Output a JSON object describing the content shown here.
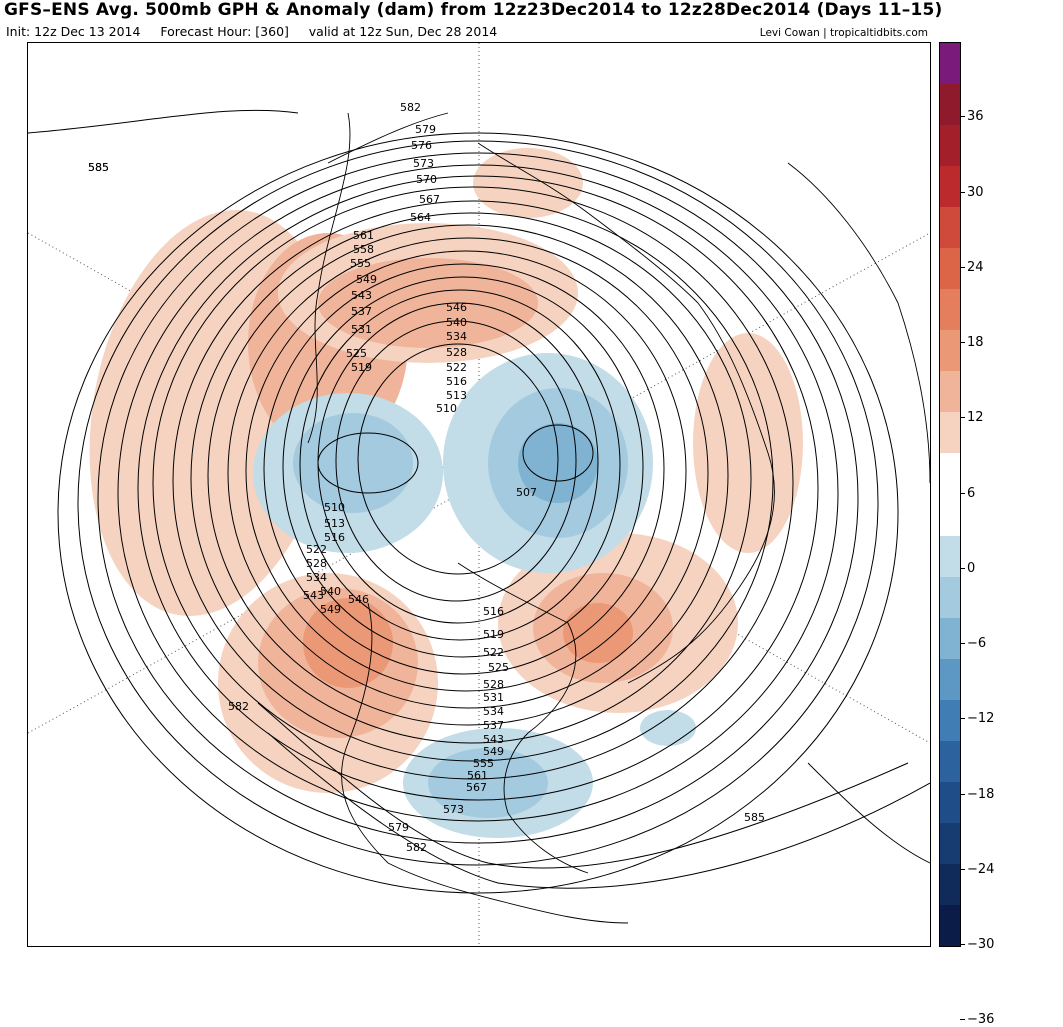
{
  "header": {
    "title": "GFS–ENS Avg. 500mb GPH & Anomaly (dam) from 12z23Dec2014 to 12z28Dec2014 (Days 11–15)",
    "init": "Init: 12z Dec 13 2014",
    "forecast_hour": "Forecast Hour: [360]",
    "valid": "valid at 12z Sun, Dec 28 2014",
    "credit": "Levi Cowan | tropicaltidbits.com"
  },
  "colorbar": {
    "tick_labels": [
      "36",
      "30",
      "24",
      "18",
      "12",
      "6",
      "0",
      "−6",
      "−12",
      "−18",
      "−24",
      "−30",
      "−36"
    ],
    "colors": [
      "#7a1a7a",
      "#8e1a2c",
      "#a3202a",
      "#bd2a2e",
      "#cf4a3a",
      "#dc6447",
      "#e47e5c",
      "#eb9877",
      "#f0b49a",
      "#f6d3c0",
      "#ffffff",
      "#ffffff",
      "#c2dce8",
      "#a3cadf",
      "#80b3d2",
      "#5d98c4",
      "#3f7db4",
      "#2c639e",
      "#1f4d88",
      "#173c72",
      "#102a5a",
      "#0b1c48"
    ]
  },
  "map": {
    "contour_labels": [
      "585",
      "582",
      "579",
      "576",
      "573",
      "570",
      "567",
      "564",
      "561",
      "558",
      "555",
      "549",
      "543",
      "537",
      "531",
      "525",
      "519",
      "546",
      "540",
      "534",
      "528",
      "522",
      "516",
      "513",
      "510",
      "507",
      "510",
      "513",
      "516",
      "522",
      "528",
      "534",
      "540",
      "543",
      "549",
      "546",
      "516",
      "519",
      "522",
      "525",
      "528",
      "531",
      "534",
      "537",
      "543",
      "549",
      "555",
      "561",
      "567",
      "573",
      "579",
      "582",
      "582",
      "585",
      "585"
    ]
  }
}
